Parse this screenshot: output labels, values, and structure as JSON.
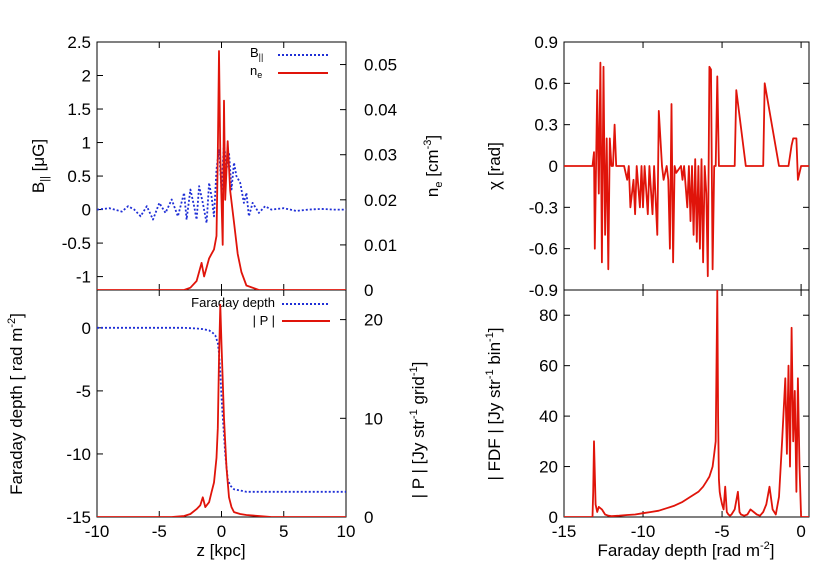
{
  "colors": {
    "blue": "#1f2fd6",
    "red": "#e0140a",
    "axis": "#000000"
  },
  "chart_data": [
    {
      "id": "bpar_ne",
      "type": "line",
      "xlim": [
        -10,
        10
      ],
      "ylim": [
        -1.2,
        2.5
      ],
      "y2lim": [
        0,
        0.055
      ],
      "xticks": [
        -10,
        -5,
        0,
        5,
        10
      ],
      "yticks": [
        -1,
        -0.5,
        0,
        0.5,
        1,
        1.5,
        2,
        2.5
      ],
      "y2ticks": [
        0,
        0.01,
        0.02,
        0.03,
        0.04,
        0.05
      ],
      "ytick_labels": [
        "-1",
        "-0.5",
        "0",
        "0.5",
        "1",
        "1.5",
        "2",
        "2.5"
      ],
      "y2tick_labels": [
        "0",
        "0.01",
        "0.02",
        "0.03",
        "0.04",
        "0.05"
      ],
      "ylabel": "B|| [μG]",
      "y2label": "ne [cm-3]",
      "legend": "top-right",
      "series": [
        {
          "name": "B||",
          "axis": "y",
          "color": "blue",
          "style": "dotted",
          "x": [
            -10,
            -9,
            -8,
            -7.5,
            -7,
            -6.5,
            -6,
            -5.5,
            -5,
            -4.5,
            -4,
            -3.5,
            -3,
            -2.8,
            -2.5,
            -2.2,
            -2,
            -1.8,
            -1.5,
            -1.2,
            -1,
            -0.8,
            -0.6,
            -0.4,
            -0.2,
            0,
            0.2,
            0.4,
            0.6,
            0.8,
            1,
            1.2,
            1.5,
            1.8,
            2,
            2.2,
            2.5,
            3,
            3.5,
            4,
            5,
            6,
            7,
            8,
            9,
            10
          ],
          "values": [
            0,
            0.02,
            -0.03,
            0.05,
            0,
            -0.1,
            0.05,
            -0.15,
            0.1,
            -0.05,
            0.15,
            -0.1,
            0.25,
            -0.15,
            0.3,
            0.05,
            -0.15,
            0.35,
            0.1,
            -0.2,
            0.4,
            0.2,
            -0.1,
            0.6,
            0.9,
            0.3,
            1.0,
            0.6,
            0.85,
            0.3,
            0.7,
            0.5,
            0.4,
            0.1,
            0.25,
            -0.1,
            0.1,
            -0.05,
            0.05,
            0,
            0.02,
            -0.02,
            0,
            0.01,
            0,
            0
          ]
        },
        {
          "name": "ne",
          "axis": "y2",
          "color": "red",
          "style": "solid",
          "x": [
            -10,
            -3,
            -2.5,
            -2,
            -1.8,
            -1.6,
            -1.4,
            -1.2,
            -1,
            -0.8,
            -0.6,
            -0.4,
            -0.3,
            -0.2,
            -0.1,
            0,
            0.1,
            0.2,
            0.3,
            0.5,
            0.7,
            1,
            1.3,
            1.6,
            2,
            3,
            10
          ],
          "values": [
            0,
            0,
            0.0005,
            0.002,
            0.004,
            0.006,
            0.003,
            0.005,
            0.007,
            0.008,
            0.009,
            0.012,
            0.03,
            0.053,
            0.03,
            0.02,
            0.01,
            0.042,
            0.02,
            0.033,
            0.022,
            0.015,
            0.008,
            0.004,
            0.001,
            0,
            0
          ]
        }
      ]
    },
    {
      "id": "rm_p",
      "type": "line",
      "xlim": [
        -10,
        10
      ],
      "ylim": [
        -15,
        3
      ],
      "y2lim": [
        0,
        23
      ],
      "xticks": [
        -10,
        -5,
        0,
        5,
        10
      ],
      "yticks": [
        -15,
        -10,
        -5,
        0
      ],
      "y2ticks": [
        0,
        10,
        20
      ],
      "xtick_labels": [
        "-10",
        "-5",
        "0",
        "5",
        "10"
      ],
      "ytick_labels": [
        "-15",
        "-10",
        "-5",
        "0"
      ],
      "y2tick_labels": [
        "0",
        "10",
        "20"
      ],
      "xlabel": "z [kpc]",
      "ylabel": "Faraday depth [ rad m-2]",
      "y2label": "| P | [Jy str-1 grid-1]",
      "legend": "top-right",
      "series": [
        {
          "name": "Faraday depth",
          "axis": "y",
          "color": "blue",
          "style": "dotted",
          "x": [
            -10,
            -3,
            -2,
            -1.5,
            -1,
            -0.7,
            -0.5,
            -0.3,
            -0.2,
            -0.1,
            0,
            0.1,
            0.2,
            0.3,
            0.4,
            0.5,
            0.7,
            1,
            1.5,
            2,
            3,
            5,
            10
          ],
          "values": [
            0,
            0,
            -0.05,
            -0.1,
            -0.2,
            -0.4,
            -0.6,
            -1.2,
            -2,
            -3.5,
            -5.5,
            -7,
            -8.5,
            -10,
            -11,
            -12,
            -12.5,
            -12.8,
            -12.9,
            -13,
            -13,
            -13,
            -13
          ]
        },
        {
          "name": "| P |",
          "axis": "y2",
          "color": "red",
          "style": "solid",
          "x": [
            -10,
            -4,
            -3,
            -2.5,
            -2,
            -1.7,
            -1.5,
            -1.3,
            -1,
            -0.8,
            -0.6,
            -0.4,
            -0.3,
            -0.2,
            -0.1,
            0,
            0.2,
            0.4,
            0.6,
            0.8,
            1,
            1.5,
            2,
            3,
            4,
            10
          ],
          "values": [
            0,
            0,
            0.1,
            0.3,
            0.8,
            1.2,
            2.0,
            1.0,
            1.5,
            2.5,
            3.5,
            6.0,
            9.0,
            16.0,
            21.5,
            17.5,
            10.0,
            5.0,
            2.0,
            1.0,
            0.5,
            0.3,
            0.2,
            0.1,
            0,
            0
          ]
        }
      ]
    },
    {
      "id": "chi",
      "type": "line",
      "xlim": [
        -15,
        0.5
      ],
      "ylim": [
        -0.9,
        0.9
      ],
      "xticks": [
        -15,
        -10,
        -5,
        0
      ],
      "yticks": [
        -0.9,
        -0.6,
        -0.3,
        0,
        0.3,
        0.6,
        0.9
      ],
      "ytick_labels": [
        "-0.9",
        "-0.6",
        "-0.3",
        "0",
        "0.3",
        "0.6",
        "0.9"
      ],
      "ylabel": "χ [rad]",
      "series": [
        {
          "name": "χ",
          "axis": "y",
          "color": "red",
          "style": "solid",
          "x": [
            -15,
            -13.2,
            -13.1,
            -13.05,
            -12.9,
            -12.8,
            -12.7,
            -12.6,
            -12.5,
            -12.4,
            -12.3,
            -12.2,
            -12.1,
            -12,
            -11.9,
            -11.8,
            -11.7,
            -11.5,
            -11.3,
            -11.2,
            -11.0,
            -10.9,
            -10.8,
            -10.6,
            -10.5,
            -10.4,
            -10.2,
            -10.1,
            -10.0,
            -9.9,
            -9.7,
            -9.6,
            -9.4,
            -9.3,
            -9.1,
            -9.0,
            -8.8,
            -8.7,
            -8.5,
            -8.4,
            -8.3,
            -8.2,
            -8.1,
            -8.0,
            -7.9,
            -7.6,
            -7.5,
            -7.4,
            -7.2,
            -7.1,
            -7.0,
            -6.9,
            -6.8,
            -6.7,
            -6.6,
            -6.5,
            -6.4,
            -6.3,
            -6.2,
            -6.1,
            -6.0,
            -5.9,
            -5.8,
            -5.7,
            -5.6,
            -5.5,
            -5.4,
            -5.3,
            -5.2,
            -5.1,
            -5.0,
            -4.9,
            -4.8,
            -4.7,
            -4.6,
            -4.5,
            -4.3,
            -4.2,
            -4.1,
            -3.5,
            -3.4,
            -3.3,
            -2.5,
            -2.4,
            -2.3,
            -1.4,
            -1.0,
            -0.8,
            -0.6,
            -0.5,
            -0.4,
            -0.3,
            -0.2,
            -0.1,
            0,
            0.5
          ],
          "values": [
            0,
            0,
            0.1,
            -0.6,
            0.55,
            -0.2,
            0.75,
            -0.7,
            0.72,
            -0.5,
            0.2,
            -0.75,
            0.2,
            0,
            0,
            0.3,
            0,
            0,
            0,
            0,
            -0.1,
            0,
            -0.3,
            -0.1,
            -0.35,
            0,
            -0.3,
            0,
            -0.3,
            0,
            -0.35,
            0,
            -0.35,
            0,
            -0.5,
            0.4,
            0,
            -0.1,
            0,
            -0.1,
            -0.6,
            0.45,
            -0.7,
            0,
            -0.05,
            0,
            -0.1,
            0,
            -0.3,
            0,
            -0.4,
            0,
            -0.5,
            0.05,
            -0.55,
            0,
            -0.6,
            0.05,
            -0.7,
            0,
            -0.2,
            -0.8,
            0.72,
            0.7,
            -0.75,
            0,
            0,
            0.65,
            0,
            0,
            0,
            0,
            0,
            0,
            0,
            0,
            0,
            0,
            0.55,
            0,
            0,
            0,
            0,
            0,
            0.6,
            0,
            0,
            0,
            0.15,
            0.2,
            0.2,
            0.2,
            -0.1,
            -0.05,
            0,
            0
          ]
        }
      ]
    },
    {
      "id": "fdf",
      "type": "line",
      "xlim": [
        -15,
        0.5
      ],
      "ylim": [
        0,
        90
      ],
      "xticks": [
        -15,
        -10,
        -5,
        0
      ],
      "yticks": [
        0,
        20,
        40,
        60,
        80
      ],
      "xtick_labels": [
        "-15",
        "-10",
        "-5",
        "0"
      ],
      "ytick_labels": [
        "0",
        "20",
        "40",
        "60",
        "80"
      ],
      "xlabel": "Faraday depth [rad m-2]",
      "ylabel": "| FDF | [Jy str-1 bin-1]",
      "series": [
        {
          "name": "| FDF |",
          "axis": "y",
          "color": "red",
          "style": "solid",
          "x": [
            -15,
            -13.2,
            -13.15,
            -13.1,
            -13.0,
            -12.9,
            -12.8,
            -12.6,
            -12.4,
            -12.2,
            -12.0,
            -11.5,
            -11.0,
            -10.5,
            -10.0,
            -9.5,
            -9.0,
            -8.5,
            -8.0,
            -7.5,
            -7.0,
            -6.5,
            -6.2,
            -6.0,
            -5.8,
            -5.6,
            -5.5,
            -5.4,
            -5.3,
            -5.25,
            -5.2,
            -5.15,
            -5.1,
            -5.0,
            -4.9,
            -4.8,
            -4.7,
            -4.6,
            -4.5,
            -4.4,
            -4.2,
            -4.0,
            -3.9,
            -3.8,
            -3.6,
            -3.4,
            -3.2,
            -3.0,
            -2.8,
            -2.6,
            -2.4,
            -2.2,
            -2.0,
            -1.8,
            -1.6,
            -1.4,
            -1.2,
            -1.0,
            -0.9,
            -0.8,
            -0.7,
            -0.6,
            -0.5,
            -0.4,
            -0.3,
            -0.2,
            -0.1,
            0,
            0.5
          ],
          "values": [
            0,
            0,
            10,
            30,
            5,
            2,
            4,
            3,
            1,
            0.5,
            0.3,
            0.5,
            0.8,
            1.0,
            1.5,
            2.0,
            2.5,
            3.5,
            4.5,
            6,
            8,
            10,
            12,
            14,
            16,
            20,
            25,
            30,
            90,
            40,
            15,
            10,
            8,
            5,
            3,
            12,
            2,
            1,
            0.5,
            1,
            3,
            10,
            2,
            1,
            0.5,
            1,
            3,
            2,
            1,
            0.5,
            2,
            5,
            12,
            3,
            1,
            8,
            30,
            55,
            25,
            60,
            20,
            75,
            30,
            50,
            10,
            55,
            20,
            0,
            0
          ]
        }
      ]
    }
  ]
}
